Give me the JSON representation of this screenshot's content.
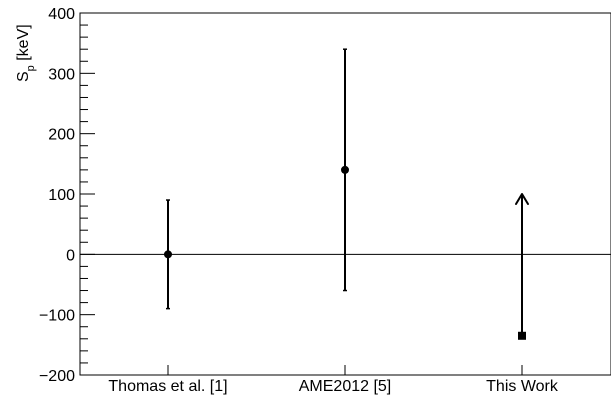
{
  "chart_data": {
    "type": "scatter",
    "title": "",
    "xlabel": "",
    "ylabel": {
      "symbol": "S",
      "subscript": "p",
      "unit": " [keV]"
    },
    "categories": [
      "Thomas et al. [1]",
      "AME2012 [5]",
      "This Work"
    ],
    "ylim": [
      -200,
      400
    ],
    "yticks": [
      {
        "value": 400,
        "label": "400"
      },
      {
        "value": 300,
        "label": "300"
      },
      {
        "value": 200,
        "label": "200"
      },
      {
        "value": 100,
        "label": "100"
      },
      {
        "value": 0,
        "label": "0"
      },
      {
        "value": -100,
        "label": "−100"
      },
      {
        "value": -200,
        "label": "−200"
      }
    ],
    "reference_line": 0,
    "grid": false,
    "points": [
      {
        "category": "Thomas et al. [1]",
        "y": 0,
        "err_low": 90,
        "err_high": 90,
        "marker": "circle"
      },
      {
        "category": "AME2012 [5]",
        "y": 140,
        "err_low": 200,
        "err_high": 200,
        "marker": "circle"
      },
      {
        "category": "This Work",
        "y": -135,
        "lower_limit": true,
        "arrow_to": 100,
        "marker": "square"
      }
    ],
    "colors": {
      "marker": "#000000",
      "axis": "#000000"
    }
  }
}
